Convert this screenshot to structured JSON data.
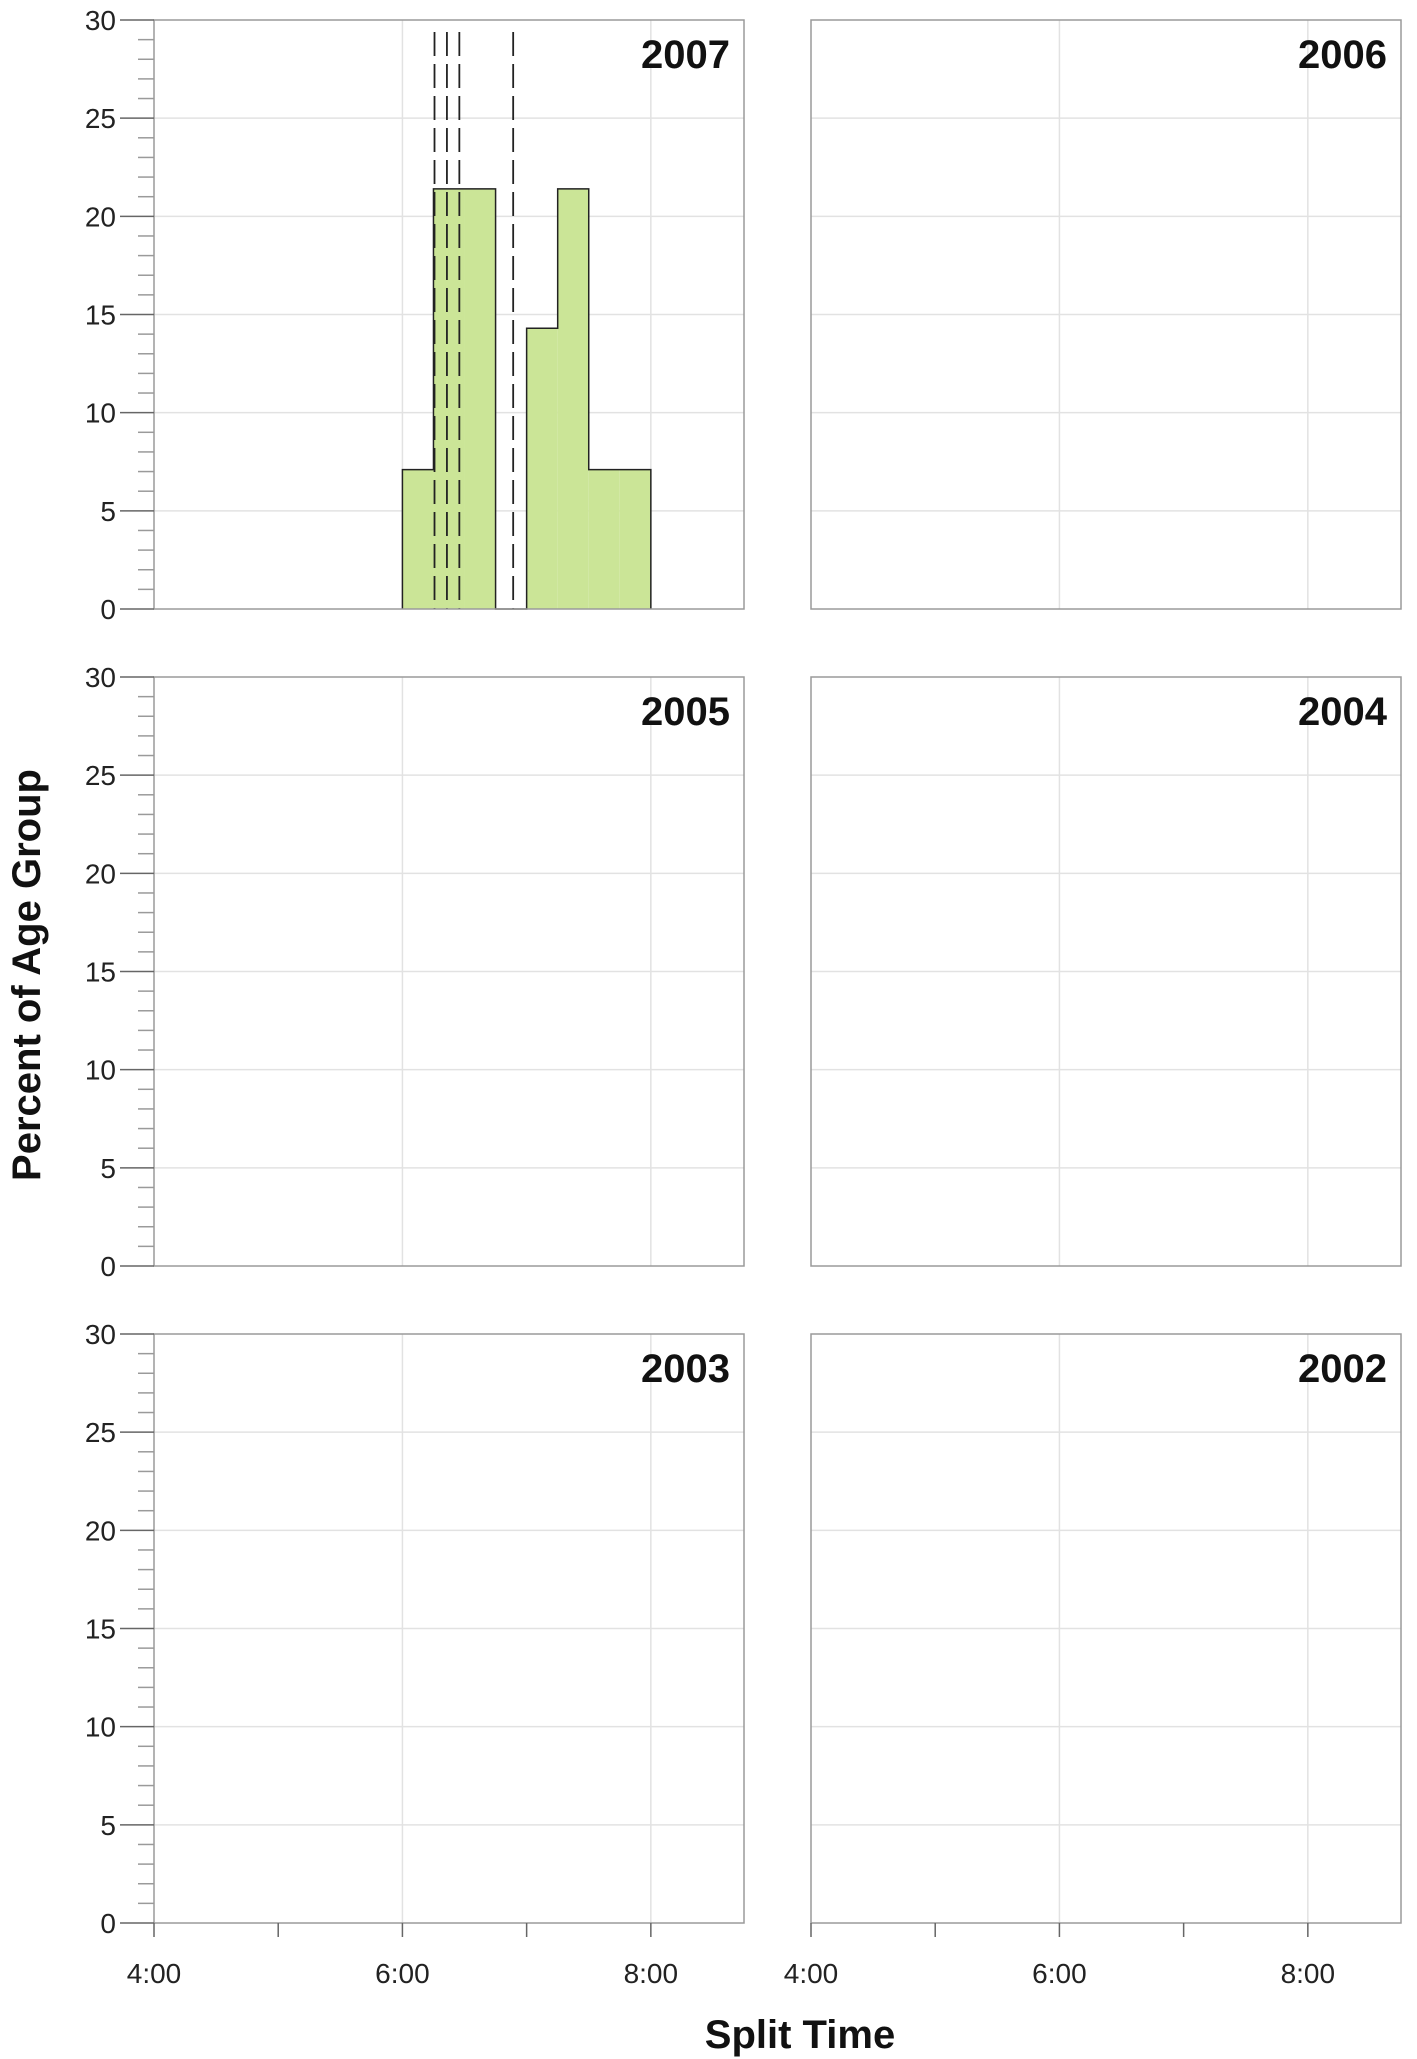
{
  "chart_data": {
    "type": "bar",
    "xlabel": "Split Time",
    "ylabel": "Percent of Age Group",
    "ylim": [
      0,
      30
    ],
    "xlim_minutes": [
      240,
      525
    ],
    "x_ticks": [
      {
        "minutes": 240,
        "label": "4:00"
      },
      {
        "minutes": 360,
        "label": "6:00"
      },
      {
        "minutes": 480,
        "label": "8:00"
      }
    ],
    "y_ticks": [
      0,
      5,
      10,
      15,
      20,
      25,
      30
    ],
    "grid": true,
    "bar_color": "#cbe597",
    "panels": [
      {
        "year": "2007",
        "bins": [
          {
            "start": 360,
            "end": 375,
            "value": 7.1
          },
          {
            "start": 375,
            "end": 390,
            "value": 21.4
          },
          {
            "start": 390,
            "end": 405,
            "value": 21.4
          },
          {
            "start": 405,
            "end": 420,
            "value": 0
          },
          {
            "start": 420,
            "end": 435,
            "value": 14.3
          },
          {
            "start": 435,
            "end": 450,
            "value": 21.4
          },
          {
            "start": 450,
            "end": 465,
            "value": 7.1
          },
          {
            "start": 465,
            "end": 480,
            "value": 7.1
          }
        ],
        "reference_lines_minutes": [
          375.5,
          381.5,
          387.5,
          413.5
        ]
      },
      {
        "year": "2006",
        "bins": [],
        "reference_lines_minutes": []
      },
      {
        "year": "2005",
        "bins": [],
        "reference_lines_minutes": []
      },
      {
        "year": "2004",
        "bins": [],
        "reference_lines_minutes": []
      },
      {
        "year": "2003",
        "bins": [],
        "reference_lines_minutes": []
      },
      {
        "year": "2002",
        "bins": [],
        "reference_lines_minutes": []
      }
    ]
  }
}
